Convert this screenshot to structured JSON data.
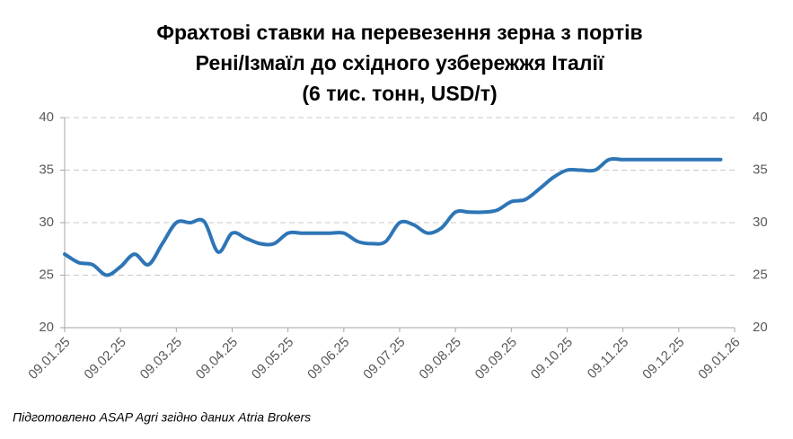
{
  "chart_data": {
    "type": "line",
    "title": [
      "Фрахтові ставки на перевезення зерна з портів",
      "Рені/Ізмаїл до східного узбережжя Італії",
      "(6 тис. тонн, USD/т)"
    ],
    "categories": [
      "09.01.25",
      null,
      null,
      null,
      "09.02.25",
      null,
      null,
      null,
      "09.03.25",
      null,
      null,
      null,
      "09.04.25",
      null,
      null,
      null,
      "09.05.25",
      null,
      null,
      null,
      "09.06.25",
      null,
      null,
      null,
      "09.07.25",
      null,
      null,
      null,
      "09.08.25",
      null,
      null,
      null,
      "09.09.25",
      null,
      null,
      null,
      "09.10.25",
      null,
      null,
      null,
      "09.11.25",
      null,
      null,
      null,
      "09.12.25",
      null,
      null,
      null,
      "09.01.26"
    ],
    "series": [
      {
        "name": "USD/т",
        "color": "#2e75b6",
        "values": [
          27,
          26.2,
          26,
          25,
          25.8,
          27,
          26,
          28,
          30,
          30,
          30.1,
          27.2,
          29,
          28.5,
          28,
          28,
          29,
          29,
          29,
          29,
          29,
          28.2,
          28,
          28.2,
          30,
          29.8,
          29,
          29.5,
          31,
          31,
          31,
          31.2,
          32,
          32.2,
          33.2,
          34.3,
          35,
          35,
          35,
          36,
          36,
          36,
          36,
          36,
          36,
          36,
          36,
          36,
          null
        ]
      }
    ],
    "ylim": [
      20,
      40
    ],
    "yticks": [
      20,
      25,
      30,
      35,
      40
    ],
    "y2lim": [
      20,
      40
    ],
    "y2ticks": [
      20,
      25,
      30,
      35,
      40
    ],
    "grid": true,
    "source": "Підготовлено ASAP Agri згідно даних Atria Brokers"
  }
}
